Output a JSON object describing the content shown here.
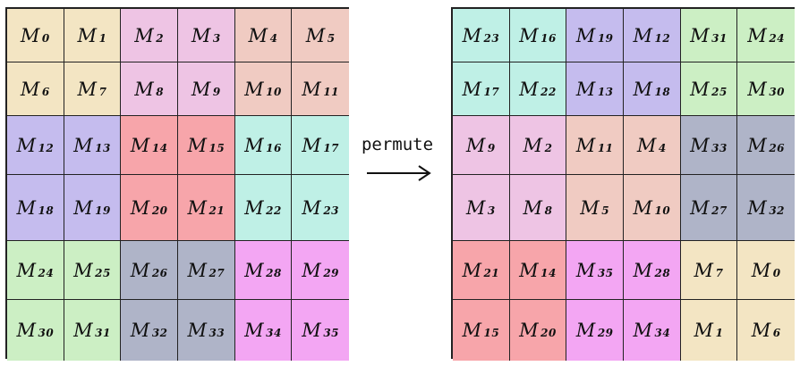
{
  "arrow_label": "permute",
  "colors": {
    "tan": "#f3e5c3",
    "lavender_pink": "#eec4e4",
    "salmon": "#f0cbc2",
    "purple": "#c5bcee",
    "red": "#f7a5aa",
    "cyan": "#bff0e6",
    "green": "#ccefc4",
    "slate": "#afb4c8",
    "magenta": "#f3a6f3"
  },
  "left_grid": [
    {
      "label": "M",
      "index": "0",
      "color": "tan"
    },
    {
      "label": "M",
      "index": "1",
      "color": "tan"
    },
    {
      "label": "M",
      "index": "2",
      "color": "lavender_pink"
    },
    {
      "label": "M",
      "index": "3",
      "color": "lavender_pink"
    },
    {
      "label": "M",
      "index": "4",
      "color": "salmon"
    },
    {
      "label": "M",
      "index": "5",
      "color": "salmon"
    },
    {
      "label": "M",
      "index": "6",
      "color": "tan"
    },
    {
      "label": "M",
      "index": "7",
      "color": "tan"
    },
    {
      "label": "M",
      "index": "8",
      "color": "lavender_pink"
    },
    {
      "label": "M",
      "index": "9",
      "color": "lavender_pink"
    },
    {
      "label": "M",
      "index": "10",
      "color": "salmon"
    },
    {
      "label": "M",
      "index": "11",
      "color": "salmon"
    },
    {
      "label": "M",
      "index": "12",
      "color": "purple"
    },
    {
      "label": "M",
      "index": "13",
      "color": "purple"
    },
    {
      "label": "M",
      "index": "14",
      "color": "red"
    },
    {
      "label": "M",
      "index": "15",
      "color": "red"
    },
    {
      "label": "M",
      "index": "16",
      "color": "cyan"
    },
    {
      "label": "M",
      "index": "17",
      "color": "cyan"
    },
    {
      "label": "M",
      "index": "18",
      "color": "purple"
    },
    {
      "label": "M",
      "index": "19",
      "color": "purple"
    },
    {
      "label": "M",
      "index": "20",
      "color": "red"
    },
    {
      "label": "M",
      "index": "21",
      "color": "red"
    },
    {
      "label": "M",
      "index": "22",
      "color": "cyan"
    },
    {
      "label": "M",
      "index": "23",
      "color": "cyan"
    },
    {
      "label": "M",
      "index": "24",
      "color": "green"
    },
    {
      "label": "M",
      "index": "25",
      "color": "green"
    },
    {
      "label": "M",
      "index": "26",
      "color": "slate"
    },
    {
      "label": "M",
      "index": "27",
      "color": "slate"
    },
    {
      "label": "M",
      "index": "28",
      "color": "magenta"
    },
    {
      "label": "M",
      "index": "29",
      "color": "magenta"
    },
    {
      "label": "M",
      "index": "30",
      "color": "green"
    },
    {
      "label": "M",
      "index": "31",
      "color": "green"
    },
    {
      "label": "M",
      "index": "32",
      "color": "slate"
    },
    {
      "label": "M",
      "index": "33",
      "color": "slate"
    },
    {
      "label": "M",
      "index": "34",
      "color": "magenta"
    },
    {
      "label": "M",
      "index": "35",
      "color": "magenta"
    }
  ],
  "right_grid": [
    {
      "label": "M",
      "index": "23",
      "color": "cyan"
    },
    {
      "label": "M",
      "index": "16",
      "color": "cyan"
    },
    {
      "label": "M",
      "index": "19",
      "color": "purple"
    },
    {
      "label": "M",
      "index": "12",
      "color": "purple"
    },
    {
      "label": "M",
      "index": "31",
      "color": "green"
    },
    {
      "label": "M",
      "index": "24",
      "color": "green"
    },
    {
      "label": "M",
      "index": "17",
      "color": "cyan"
    },
    {
      "label": "M",
      "index": "22",
      "color": "cyan"
    },
    {
      "label": "M",
      "index": "13",
      "color": "purple"
    },
    {
      "label": "M",
      "index": "18",
      "color": "purple"
    },
    {
      "label": "M",
      "index": "25",
      "color": "green"
    },
    {
      "label": "M",
      "index": "30",
      "color": "green"
    },
    {
      "label": "M",
      "index": "9",
      "color": "lavender_pink"
    },
    {
      "label": "M",
      "index": "2",
      "color": "lavender_pink"
    },
    {
      "label": "M",
      "index": "11",
      "color": "salmon"
    },
    {
      "label": "M",
      "index": "4",
      "color": "salmon"
    },
    {
      "label": "M",
      "index": "33",
      "color": "slate"
    },
    {
      "label": "M",
      "index": "26",
      "color": "slate"
    },
    {
      "label": "M",
      "index": "3",
      "color": "lavender_pink"
    },
    {
      "label": "M",
      "index": "8",
      "color": "lavender_pink"
    },
    {
      "label": "M",
      "index": "5",
      "color": "salmon"
    },
    {
      "label": "M",
      "index": "10",
      "color": "salmon"
    },
    {
      "label": "M",
      "index": "27",
      "color": "slate"
    },
    {
      "label": "M",
      "index": "32",
      "color": "slate"
    },
    {
      "label": "M",
      "index": "21",
      "color": "red"
    },
    {
      "label": "M",
      "index": "14",
      "color": "red"
    },
    {
      "label": "M",
      "index": "35",
      "color": "magenta"
    },
    {
      "label": "M",
      "index": "28",
      "color": "magenta"
    },
    {
      "label": "M",
      "index": "7",
      "color": "tan"
    },
    {
      "label": "M",
      "index": "0",
      "color": "tan"
    },
    {
      "label": "M",
      "index": "15",
      "color": "red"
    },
    {
      "label": "M",
      "index": "20",
      "color": "red"
    },
    {
      "label": "M",
      "index": "29",
      "color": "magenta"
    },
    {
      "label": "M",
      "index": "34",
      "color": "magenta"
    },
    {
      "label": "M",
      "index": "1",
      "color": "tan"
    },
    {
      "label": "M",
      "index": "6",
      "color": "tan"
    }
  ]
}
